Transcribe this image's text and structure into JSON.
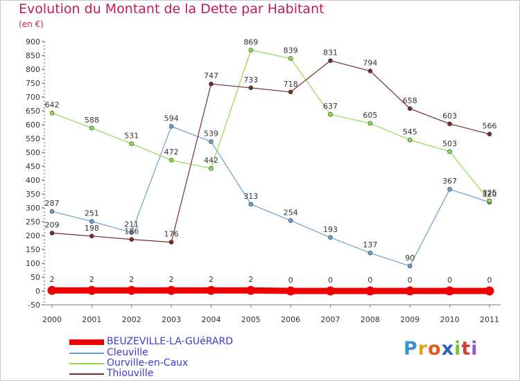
{
  "title": "Evolution du Montant de la Dette par Habitant",
  "subtitle": "(en €)",
  "brand": "Proxiti",
  "chart_data": {
    "type": "line",
    "title": "Evolution du Montant de la Dette par Habitant",
    "ylabel": "(en €)",
    "xlabel": "",
    "categories": [
      "2000",
      "2001",
      "2002",
      "2003",
      "2004",
      "2005",
      "2006",
      "2007",
      "2008",
      "2009",
      "2010",
      "2011"
    ],
    "ylim": [
      -50,
      900
    ],
    "yticks": [
      -50,
      0,
      50,
      100,
      150,
      200,
      250,
      300,
      350,
      400,
      450,
      500,
      550,
      600,
      650,
      700,
      750,
      800,
      850,
      900
    ],
    "grid": false,
    "legend": "bottom-left",
    "series": [
      {
        "name": "BEUZEVILLE-LA-GUéRARD",
        "color": "#ee0000",
        "values": [
          2,
          2,
          2,
          2,
          2,
          2,
          0,
          0,
          0,
          0,
          0,
          0
        ],
        "labels": [
          "2",
          "2",
          "2",
          "2",
          "2",
          "2",
          "0",
          "0",
          "0",
          "0",
          "0",
          "0"
        ],
        "thick": true
      },
      {
        "name": "Cleuville",
        "color": "#6a9fd4",
        "values": [
          287,
          251,
          211,
          594,
          539,
          313,
          254,
          193,
          137,
          90,
          367,
          320
        ],
        "labels": [
          "287",
          "251",
          "211",
          "594",
          "539",
          "313",
          "254",
          "193",
          "137",
          "90",
          "367",
          "320"
        ]
      },
      {
        "name": "Ourville-en-Caux",
        "color": "#8fdc4e",
        "values": [
          642,
          588,
          531,
          472,
          442,
          869,
          839,
          637,
          605,
          545,
          503,
          325
        ],
        "labels": [
          "642",
          "588",
          "531",
          "472",
          "442",
          "869",
          "839",
          "637",
          "605",
          "545",
          "503",
          "325"
        ]
      },
      {
        "name": "Thiouville",
        "color": "#7a2a2a",
        "values": [
          209,
          198,
          186,
          176,
          747,
          733,
          718,
          831,
          794,
          658,
          603,
          566
        ],
        "labels": [
          "209",
          "198",
          "186",
          "176",
          "747",
          "733",
          "718",
          "831",
          "794",
          "658",
          "603",
          "566"
        ]
      }
    ]
  }
}
